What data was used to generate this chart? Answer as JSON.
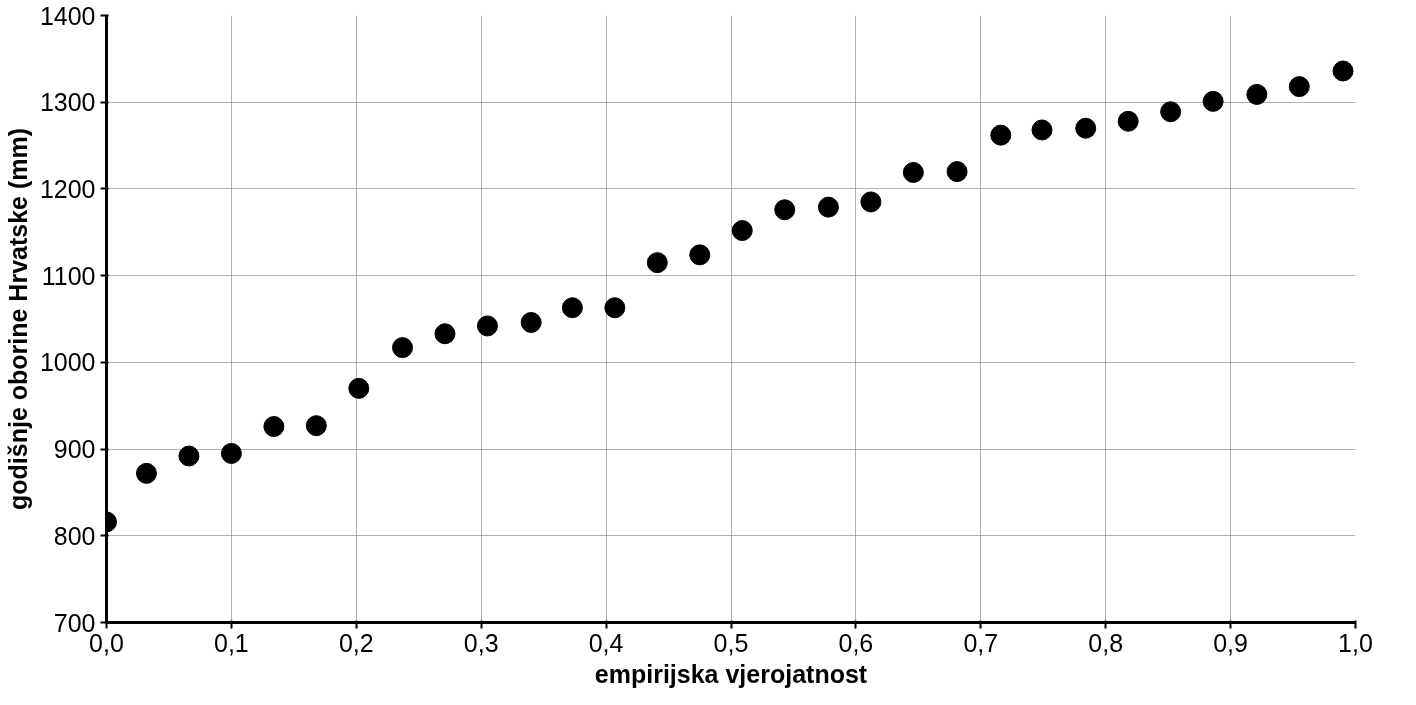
{
  "chart_data": {
    "type": "scatter",
    "xlabel": "empirijska vjerojatnost",
    "ylabel": "godišnje oborine Hrvatske (mm)",
    "x": [
      0.0,
      0.032,
      0.066,
      0.1,
      0.134,
      0.168,
      0.202,
      0.237,
      0.271,
      0.305,
      0.34,
      0.373,
      0.407,
      0.441,
      0.475,
      0.509,
      0.543,
      0.578,
      0.612,
      0.646,
      0.681,
      0.716,
      0.749,
      0.784,
      0.818,
      0.852,
      0.886,
      0.921,
      0.955,
      0.99
    ],
    "series": [
      {
        "color": "#000000",
        "values": [
          816,
          872,
          892,
          895,
          926,
          927,
          970,
          1017,
          1033,
          1042,
          1046,
          1063,
          1063,
          1115,
          1124,
          1152,
          1176,
          1179,
          1185,
          1219,
          1220,
          1262,
          1268,
          1270,
          1278,
          1289,
          1301,
          1309,
          1318,
          1336
        ]
      }
    ],
    "xlim": [
      0,
      1
    ],
    "ylim": [
      700,
      1400
    ],
    "xticks": [
      {
        "value": 0,
        "label": "0,0"
      },
      {
        "value": 0.1,
        "label": "0,1"
      },
      {
        "value": 0.2,
        "label": "0,2"
      },
      {
        "value": 0.3,
        "label": "0,3"
      },
      {
        "value": 0.4,
        "label": "0,4"
      },
      {
        "value": 0.5,
        "label": "0,5"
      },
      {
        "value": 0.6,
        "label": "0,6"
      },
      {
        "value": 0.7,
        "label": "0,7"
      },
      {
        "value": 0.8,
        "label": "0,8"
      },
      {
        "value": 0.9,
        "label": "0,9"
      },
      {
        "value": 1,
        "label": "1,0"
      }
    ],
    "yticks": [
      700,
      800,
      900,
      1000,
      1100,
      1200,
      1300,
      1400
    ],
    "grid": true,
    "marker": "circle"
  }
}
